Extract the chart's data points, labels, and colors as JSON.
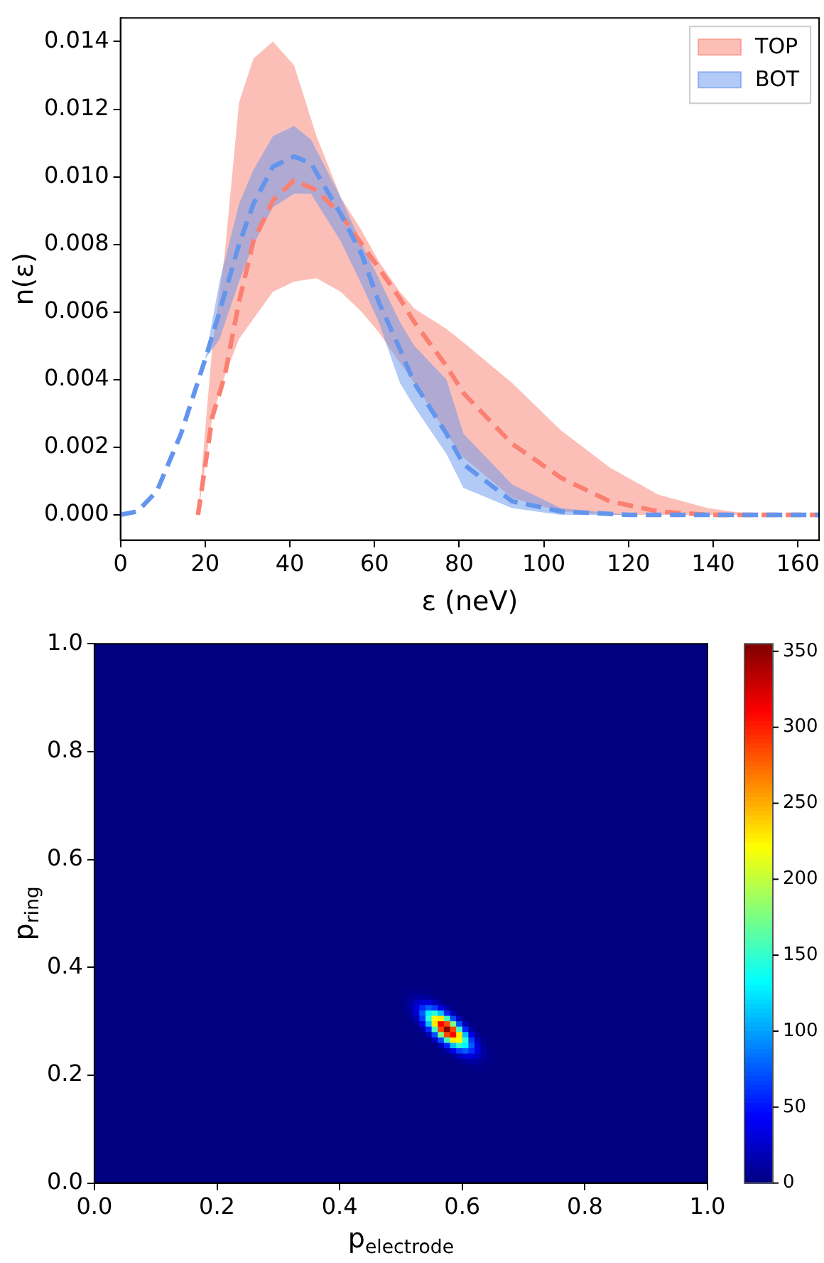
{
  "chart_data": [
    {
      "type": "line",
      "xlabel": "ε (neV)",
      "ylabel": "n(ε)",
      "xlim": [
        0,
        165
      ],
      "ylim": [
        -0.00075,
        0.0147
      ],
      "xticks": [
        0,
        20,
        40,
        60,
        80,
        100,
        120,
        140,
        160
      ],
      "yticks": [
        {
          "value": 0,
          "label": "0.000"
        },
        {
          "value": 0.002,
          "label": "0.002"
        },
        {
          "value": 0.004,
          "label": "0.004"
        },
        {
          "value": 0.006,
          "label": "0.006"
        },
        {
          "value": 0.008,
          "label": "0.008"
        },
        {
          "value": 0.01,
          "label": "0.010"
        },
        {
          "value": 0.012,
          "label": "0.012"
        },
        {
          "value": 0.014,
          "label": "0.014"
        }
      ],
      "legend": "top right",
      "line_style": "dashed",
      "series": [
        {
          "name": "TOP",
          "color": "#fa8072",
          "x": [
            18.3,
            21.7,
            24.6,
            28,
            31.4,
            36,
            41,
            46.3,
            52,
            57,
            61,
            66,
            69.4,
            77,
            81,
            92.5,
            104,
            115.6,
            127,
            138.7,
            150,
            165
          ],
          "values": [
            0,
            0.0029,
            0.0041,
            0.0063,
            0.0081,
            0.0093,
            0.0099,
            0.0096,
            0.0089,
            0.008,
            0.0073,
            0.0064,
            0.0057,
            0.0044,
            0.0036,
            0.0021,
            0.0011,
            0.0004,
            0.0001,
            0,
            0,
            0
          ],
          "lower": [
            0,
            0.0029,
            0.0041,
            0.0052,
            0.0058,
            0.0066,
            0.0069,
            0.007,
            0.0066,
            0.006,
            0.0054,
            0.0045,
            0.0039,
            0.0024,
            0.0017,
            0.0005,
            0.0001,
            0,
            0,
            0,
            0,
            0
          ],
          "upper": [
            0,
            0.005,
            0.0077,
            0.0122,
            0.0135,
            0.014,
            0.0133,
            0.0112,
            0.0094,
            0.0084,
            0.0075,
            0.0066,
            0.0061,
            0.0055,
            0.0051,
            0.0039,
            0.0025,
            0.0014,
            0.0006,
            0.0002,
            0,
            0
          ]
        },
        {
          "name": "BOT",
          "color": "#6495ed",
          "x": [
            0,
            4,
            8.6,
            14.3,
            20,
            23.4,
            28,
            31.4,
            36,
            41,
            45,
            52,
            57,
            61,
            66,
            69.4,
            77,
            81,
            92.5,
            104,
            120,
            165
          ],
          "values": [
            0,
            0.0001,
            0.0007,
            0.0024,
            0.0046,
            0.006,
            0.008,
            0.0092,
            0.0103,
            0.0106,
            0.0104,
            0.0089,
            0.0077,
            0.0063,
            0.0049,
            0.0039,
            0.0024,
            0.0015,
            0.0004,
            0.0001,
            0,
            0
          ],
          "lower": [
            0,
            0.0001,
            0.0007,
            0.0024,
            0.0046,
            0.0052,
            0.0069,
            0.008,
            0.0091,
            0.0095,
            0.0095,
            0.0081,
            0.0068,
            0.0057,
            0.0039,
            0.0032,
            0.0018,
            0.0008,
            0.0002,
            0,
            0,
            0
          ],
          "upper": [
            0,
            0.0001,
            0.0007,
            0.0024,
            0.0046,
            0.0069,
            0.0092,
            0.0102,
            0.0112,
            0.0115,
            0.0111,
            0.0094,
            0.008,
            0.007,
            0.0057,
            0.005,
            0.004,
            0.0024,
            0.0009,
            0.0002,
            0,
            0
          ]
        }
      ]
    },
    {
      "type": "heatmap",
      "xlabel": "p$_{electrode}$",
      "ylabel": "p$_{ring}$",
      "xlim": [
        0,
        1
      ],
      "ylim": [
        0,
        1
      ],
      "xticks": [
        {
          "value": 0,
          "label": "0.0"
        },
        {
          "value": 0.2,
          "label": "0.2"
        },
        {
          "value": 0.4,
          "label": "0.4"
        },
        {
          "value": 0.6,
          "label": "0.6"
        },
        {
          "value": 0.8,
          "label": "0.8"
        },
        {
          "value": 1,
          "label": "1.0"
        }
      ],
      "yticks": [
        {
          "value": 0,
          "label": "0.0"
        },
        {
          "value": 0.2,
          "label": "0.2"
        },
        {
          "value": 0.4,
          "label": "0.4"
        },
        {
          "value": 0.6,
          "label": "0.6"
        },
        {
          "value": 0.8,
          "label": "0.8"
        },
        {
          "value": 1,
          "label": "1.0"
        }
      ],
      "clim": [
        0,
        355
      ],
      "cticks": [
        0,
        50,
        100,
        150,
        200,
        250,
        300,
        350
      ],
      "x": [
        0.505,
        0.515,
        0.525,
        0.535,
        0.545,
        0.555,
        0.565,
        0.575,
        0.585,
        0.595,
        0.605,
        0.615,
        0.625,
        0.635,
        0.645
      ],
      "y": [
        0.355,
        0.345,
        0.335,
        0.325,
        0.315,
        0.305,
        0.295,
        0.285,
        0.275,
        0.265,
        0.255,
        0.245,
        0.235,
        0.225,
        0.215
      ],
      "cells": [
        [
          0,
          3,
          3,
          3,
          0,
          0,
          0,
          0,
          0,
          0,
          0,
          0,
          0,
          0,
          0
        ],
        [
          3,
          6,
          10,
          11,
          8,
          4,
          0,
          0,
          0,
          0,
          0,
          0,
          0,
          0,
          0
        ],
        [
          3,
          10,
          22,
          31,
          30,
          19,
          8,
          0,
          0,
          0,
          0,
          0,
          0,
          0,
          0
        ],
        [
          3,
          11,
          31,
          60,
          76,
          65,
          37,
          14,
          0,
          0,
          0,
          0,
          0,
          0,
          0
        ],
        [
          0,
          8,
          30,
          76,
          130,
          147,
          112,
          57,
          19,
          0,
          0,
          0,
          0,
          0,
          0
        ],
        [
          0,
          4,
          19,
          65,
          147,
          224,
          229,
          156,
          71,
          22,
          0,
          0,
          0,
          0,
          0
        ],
        [
          0,
          0,
          8,
          37,
          112,
          229,
          312,
          286,
          175,
          71,
          19,
          0,
          0,
          0,
          0
        ],
        [
          0,
          0,
          0,
          14,
          57,
          156,
          286,
          350,
          286,
          156,
          57,
          14,
          0,
          0,
          0
        ],
        [
          0,
          0,
          0,
          0,
          19,
          71,
          175,
          286,
          312,
          229,
          112,
          37,
          8,
          0,
          0
        ],
        [
          0,
          0,
          0,
          0,
          0,
          22,
          71,
          156,
          229,
          224,
          147,
          65,
          19,
          4,
          0
        ],
        [
          0,
          0,
          0,
          0,
          0,
          0,
          19,
          57,
          112,
          147,
          130,
          76,
          30,
          8,
          0
        ],
        [
          0,
          0,
          0,
          0,
          0,
          0,
          0,
          14,
          37,
          65,
          76,
          60,
          31,
          11,
          3
        ],
        [
          0,
          0,
          0,
          0,
          0,
          0,
          0,
          0,
          8,
          19,
          30,
          31,
          22,
          10,
          3
        ],
        [
          0,
          0,
          0,
          0,
          0,
          0,
          0,
          0,
          0,
          4,
          8,
          11,
          10,
          6,
          3
        ],
        [
          0,
          0,
          0,
          0,
          0,
          0,
          0,
          0,
          0,
          0,
          0,
          3,
          3,
          3,
          0
        ]
      ]
    }
  ]
}
